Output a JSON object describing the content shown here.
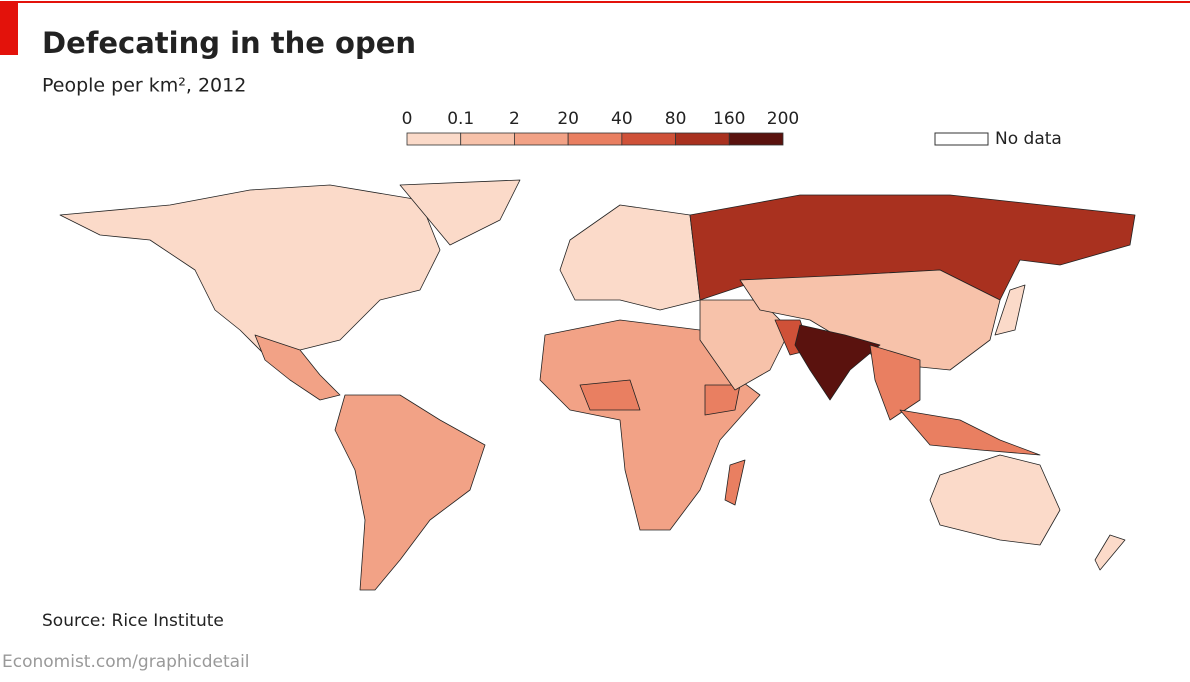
{
  "header": {
    "title": "Defecating in the open",
    "subtitle": "People per km², 2012"
  },
  "legend": {
    "thresholds": [
      0,
      0.1,
      2,
      20,
      40,
      80,
      160,
      200
    ],
    "colors": [
      "#fbdac9",
      "#f7c2aa",
      "#f2a286",
      "#e97f61",
      "#cf5138",
      "#a9311f",
      "#5a120e"
    ],
    "no_data_label": "No data",
    "no_data_color": "#ffffff"
  },
  "footer": {
    "source": "Source: Rice Institute",
    "credit": "Economist.com/graphicdetail"
  }
}
